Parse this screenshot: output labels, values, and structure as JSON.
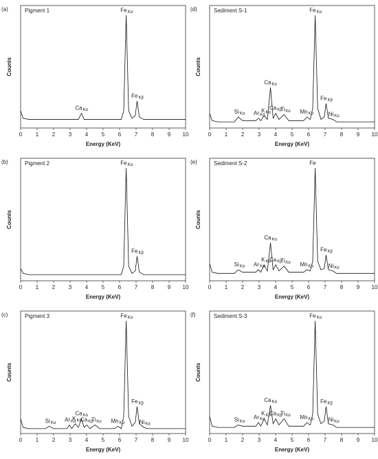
{
  "chart_data": [
    {
      "type": "line",
      "panel": "(a)",
      "title": "Pigment 1",
      "xlabel": "Energy (KeV)",
      "ylabel": "Counts",
      "xlim": [
        0,
        10
      ],
      "ylim": [
        0,
        100
      ],
      "xticks": [
        0,
        1,
        2,
        3,
        4,
        5,
        6,
        7,
        8,
        9,
        10
      ],
      "x": [
        0,
        0.15,
        0.5,
        1.5,
        1.74,
        2.0,
        2.8,
        2.96,
        3.1,
        3.31,
        3.5,
        3.69,
        3.85,
        4.01,
        4.2,
        4.51,
        4.8,
        5.7,
        5.9,
        6.1,
        6.25,
        6.4,
        6.55,
        6.75,
        6.95,
        7.06,
        7.2,
        7.47,
        7.7,
        8.5,
        10
      ],
      "values": [
        14,
        8,
        7,
        7,
        7,
        7,
        7,
        7,
        7,
        7,
        7,
        12,
        7,
        7,
        7,
        7,
        7,
        7,
        7,
        7,
        14,
        92,
        14,
        8,
        10,
        22,
        9,
        7,
        7,
        7,
        7
      ],
      "annotations": [
        {
          "label": "Ca",
          "line": "Kα",
          "x": 3.69
        },
        {
          "label": "Fe",
          "line": "Kα",
          "x": 6.4
        },
        {
          "label": "Fe",
          "line": "Kβ",
          "x": 7.06
        }
      ]
    },
    {
      "type": "line",
      "panel": "(b)",
      "title": "Pigment 2",
      "xlabel": "Energy (KeV)",
      "ylabel": "Counts",
      "xlim": [
        0,
        10
      ],
      "ylim": [
        0,
        100
      ],
      "xticks": [
        0,
        1,
        2,
        3,
        4,
        5,
        6,
        7,
        8,
        9,
        10
      ],
      "x": [
        0,
        0.15,
        0.5,
        1.5,
        1.74,
        2.0,
        2.8,
        2.96,
        3.1,
        3.31,
        3.5,
        3.69,
        3.85,
        4.01,
        4.2,
        4.51,
        4.8,
        5.7,
        5.9,
        6.1,
        6.25,
        6.4,
        6.55,
        6.75,
        6.95,
        7.06,
        7.2,
        7.47,
        7.7,
        8.5,
        10
      ],
      "values": [
        10,
        6,
        5,
        5,
        5,
        5,
        5,
        5,
        5,
        5,
        5,
        5,
        5,
        5,
        5,
        5,
        5,
        5,
        5,
        5,
        12,
        92,
        12,
        6,
        8,
        20,
        7,
        5,
        5,
        5,
        5
      ],
      "annotations": [
        {
          "label": "Fe",
          "line": "Kα",
          "x": 6.4
        },
        {
          "label": "Fe",
          "line": "Kβ",
          "x": 7.06
        }
      ]
    },
    {
      "type": "line",
      "panel": "(c)",
      "title": "Pigment 3",
      "xlabel": "Energy (KeV)",
      "ylabel": "Counts",
      "xlim": [
        0,
        10
      ],
      "ylim": [
        0,
        100
      ],
      "xticks": [
        0,
        1,
        2,
        3,
        4,
        5,
        6,
        7,
        8,
        9,
        10
      ],
      "x": [
        0,
        0.15,
        0.5,
        1.5,
        1.74,
        2.0,
        2.8,
        2.96,
        3.1,
        3.31,
        3.5,
        3.69,
        3.85,
        4.01,
        4.2,
        4.51,
        4.8,
        5.7,
        5.9,
        6.1,
        6.25,
        6.4,
        6.55,
        6.75,
        6.95,
        7.06,
        7.2,
        7.47,
        7.7,
        8.5,
        10
      ],
      "values": [
        12,
        5,
        4,
        4,
        6,
        4,
        4,
        7,
        4,
        8,
        5,
        12,
        5,
        7,
        4,
        7,
        4,
        4,
        6,
        4,
        14,
        92,
        14,
        6,
        9,
        22,
        8,
        5,
        4,
        4,
        4
      ],
      "annotations": [
        {
          "label": "Si",
          "line": "Kα",
          "x": 1.74
        },
        {
          "label": "Ar",
          "line": "Kα",
          "x": 2.96
        },
        {
          "label": "K",
          "line": "Kα",
          "x": 3.31
        },
        {
          "label": "Ca",
          "line": "Kα",
          "x": 3.69
        },
        {
          "label": "Ca",
          "line": "Kβ",
          "x": 4.01
        },
        {
          "label": "Ti",
          "line": "Kα",
          "x": 4.51
        },
        {
          "label": "Mn",
          "line": "Kα",
          "x": 5.9
        },
        {
          "label": "Fe",
          "line": "Kα",
          "x": 6.4
        },
        {
          "label": "Fe",
          "line": "Kβ",
          "x": 7.06
        },
        {
          "label": "Ni",
          "line": "Kα",
          "x": 7.47
        }
      ]
    },
    {
      "type": "line",
      "panel": "(d)",
      "title": "Sediment S-1",
      "xlabel": "Energy (KeV)",
      "ylabel": "Counts",
      "xlim": [
        0,
        10
      ],
      "ylim": [
        0,
        100
      ],
      "xticks": [
        0,
        1,
        2,
        3,
        4,
        5,
        6,
        7,
        8,
        9,
        10
      ],
      "x": [
        0,
        0.15,
        0.5,
        1.5,
        1.74,
        2.0,
        2.8,
        2.96,
        3.1,
        3.31,
        3.5,
        3.69,
        3.85,
        4.01,
        4.2,
        4.51,
        4.8,
        5.7,
        5.9,
        6.1,
        6.25,
        6.4,
        6.55,
        6.75,
        6.95,
        7.06,
        7.2,
        7.47,
        7.7,
        8.5,
        10
      ],
      "values": [
        12,
        6,
        5,
        5,
        9,
        6,
        6,
        8,
        6,
        10,
        7,
        33,
        8,
        12,
        7,
        11,
        6,
        6,
        9,
        7,
        16,
        92,
        16,
        7,
        9,
        20,
        8,
        7,
        5,
        5,
        5
      ],
      "annotations": [
        {
          "label": "Si",
          "line": "Kα",
          "x": 1.74
        },
        {
          "label": "Ar",
          "line": "Kα",
          "x": 2.96
        },
        {
          "label": "K",
          "line": "Kα",
          "x": 3.31
        },
        {
          "label": "Ca",
          "line": "Kα",
          "x": 3.69
        },
        {
          "label": "Ca",
          "line": "Kβ",
          "x": 4.01
        },
        {
          "label": "Ti",
          "line": "Kα",
          "x": 4.51
        },
        {
          "label": "Mn",
          "line": "Kα",
          "x": 5.9
        },
        {
          "label": "Fe",
          "line": "Kα",
          "x": 6.4
        },
        {
          "label": "Fe",
          "line": "Kβ",
          "x": 7.06
        },
        {
          "label": "Ni",
          "line": "Kα",
          "x": 7.47
        }
      ]
    },
    {
      "type": "line",
      "panel": "(e)",
      "title": "Sediment S-2",
      "xlabel": "Energy (KeV)",
      "ylabel": "Counts",
      "xlim": [
        0,
        10
      ],
      "ylim": [
        0,
        100
      ],
      "xticks": [
        0,
        1,
        2,
        3,
        4,
        5,
        6,
        7,
        8,
        9,
        10
      ],
      "x": [
        0,
        0.15,
        0.5,
        1.5,
        1.74,
        2.0,
        2.8,
        2.96,
        3.1,
        3.31,
        3.5,
        3.69,
        3.85,
        4.01,
        4.2,
        4.51,
        4.8,
        5.7,
        5.9,
        6.1,
        6.25,
        6.4,
        6.55,
        6.75,
        6.95,
        7.06,
        7.2,
        7.47,
        7.7,
        8.5,
        10
      ],
      "values": [
        14,
        7,
        6,
        6,
        9,
        7,
        7,
        9,
        7,
        13,
        8,
        31,
        9,
        13,
        8,
        12,
        7,
        7,
        9,
        8,
        16,
        92,
        16,
        9,
        10,
        21,
        9,
        8,
        6,
        6,
        6
      ],
      "annotations": [
        {
          "label": "Si",
          "line": "Kα",
          "x": 1.74
        },
        {
          "label": "Ar",
          "line": "Kα",
          "x": 2.96
        },
        {
          "label": "K",
          "line": "Kα",
          "x": 3.31
        },
        {
          "label": "Ca",
          "line": "Kα",
          "x": 3.69
        },
        {
          "label": "Ca",
          "line": "Kβ",
          "x": 4.01
        },
        {
          "label": "Ti",
          "line": "Kα",
          "x": 4.51
        },
        {
          "label": "Mn",
          "line": "Kα",
          "x": 5.9
        },
        {
          "label": "Fe",
          "x": 6.4
        },
        {
          "label": "Fe",
          "line": "Kβ",
          "x": 7.06
        },
        {
          "label": "Ni",
          "line": "Kα",
          "x": 7.47
        }
      ]
    },
    {
      "type": "line",
      "panel": "(f)",
      "title": "Sediment S-3",
      "xlabel": "Energy (KeV)",
      "ylabel": "Counts",
      "xlim": [
        0,
        10
      ],
      "ylim": [
        0,
        100
      ],
      "xticks": [
        0,
        1,
        2,
        3,
        4,
        5,
        6,
        7,
        8,
        9,
        10
      ],
      "x": [
        0,
        0.15,
        0.5,
        1.5,
        1.74,
        2.0,
        2.8,
        2.96,
        3.1,
        3.31,
        3.5,
        3.69,
        3.85,
        4.01,
        4.2,
        4.51,
        4.8,
        5.7,
        5.9,
        6.1,
        6.25,
        6.4,
        6.55,
        6.75,
        6.95,
        7.06,
        7.2,
        7.47,
        7.7,
        8.5,
        10
      ],
      "values": [
        14,
        6,
        5,
        5,
        7,
        6,
        6,
        9,
        6,
        12,
        7,
        23,
        8,
        12,
        7,
        12,
        6,
        6,
        9,
        7,
        16,
        92,
        16,
        8,
        10,
        22,
        8,
        7,
        5,
        5,
        5
      ],
      "annotations": [
        {
          "label": "Si",
          "line": "Kα",
          "x": 1.74
        },
        {
          "label": "Ar",
          "line": "Kα",
          "x": 2.96
        },
        {
          "label": "K",
          "line": "Kα",
          "x": 3.31
        },
        {
          "label": "Ca",
          "line": "Kα",
          "x": 3.69
        },
        {
          "label": "Ca",
          "line": "Kβ",
          "x": 4.01
        },
        {
          "label": "Ti",
          "line": "Kα",
          "x": 4.51
        },
        {
          "label": "Mn",
          "line": "Kα",
          "x": 5.9
        },
        {
          "label": "Fe",
          "line": "Kα",
          "x": 6.4
        },
        {
          "label": "Fe",
          "line": "Kβ",
          "x": 7.06
        },
        {
          "label": "Ni",
          "line": "Kα",
          "x": 7.47
        }
      ]
    }
  ]
}
